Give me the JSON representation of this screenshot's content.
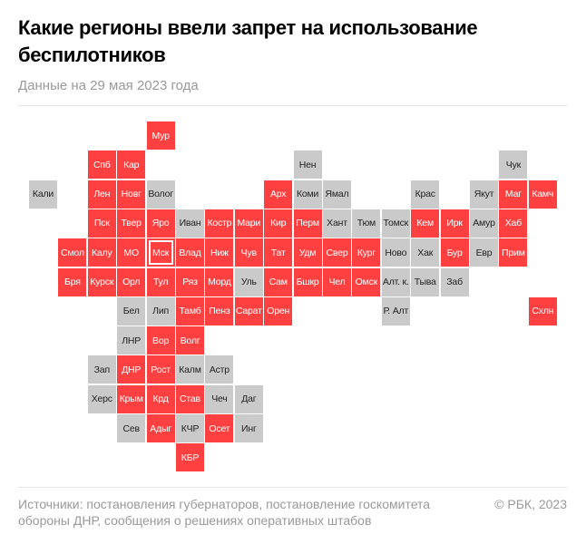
{
  "header": {
    "title": "Какие регионы ввели запрет на использование беспилотников",
    "subtitle": "Данные на 29 мая 2023 года"
  },
  "colors": {
    "banned": "#ff4040",
    "not_banned": "#cacaca"
  },
  "regions": [
    {
      "label": "Мур",
      "banned": true
    },
    {
      "label": "Спб",
      "banned": true
    },
    {
      "label": "Кар",
      "banned": true
    },
    {
      "label": "Нен",
      "banned": false
    },
    {
      "label": "Чук",
      "banned": false
    },
    {
      "label": "Кали",
      "banned": false
    },
    {
      "label": "Лен",
      "banned": true
    },
    {
      "label": "Новг",
      "banned": true
    },
    {
      "label": "Волог",
      "banned": false
    },
    {
      "label": "Арх",
      "banned": true
    },
    {
      "label": "Коми",
      "banned": false
    },
    {
      "label": "Ямал",
      "banned": false
    },
    {
      "label": "Крас",
      "banned": false
    },
    {
      "label": "Якут",
      "banned": false
    },
    {
      "label": "Маг",
      "banned": true
    },
    {
      "label": "Камч",
      "banned": true
    },
    {
      "label": "Пск",
      "banned": true
    },
    {
      "label": "Твер",
      "banned": true
    },
    {
      "label": "Яро",
      "banned": true
    },
    {
      "label": "Иван",
      "banned": false
    },
    {
      "label": "Костр",
      "banned": true
    },
    {
      "label": "Мари",
      "banned": true
    },
    {
      "label": "Кир",
      "banned": true
    },
    {
      "label": "Перм",
      "banned": true
    },
    {
      "label": "Хант",
      "banned": false
    },
    {
      "label": "Тюм",
      "banned": false
    },
    {
      "label": "Томск",
      "banned": false
    },
    {
      "label": "Кем",
      "banned": true
    },
    {
      "label": "Ирк",
      "banned": true
    },
    {
      "label": "Амур",
      "banned": false
    },
    {
      "label": "Хаб",
      "banned": true
    },
    {
      "label": "Смол",
      "banned": true
    },
    {
      "label": "Калу",
      "banned": true
    },
    {
      "label": "МО",
      "banned": true
    },
    {
      "label": "Мск",
      "banned": true,
      "capital": true
    },
    {
      "label": "Влад",
      "banned": true
    },
    {
      "label": "Ниж",
      "banned": true
    },
    {
      "label": "Чув",
      "banned": true
    },
    {
      "label": "Тат",
      "banned": true
    },
    {
      "label": "Удм",
      "banned": true
    },
    {
      "label": "Свер",
      "banned": true
    },
    {
      "label": "Кург",
      "banned": true
    },
    {
      "label": "Ново",
      "banned": false
    },
    {
      "label": "Хак",
      "banned": false
    },
    {
      "label": "Бур",
      "banned": true
    },
    {
      "label": "Евр",
      "banned": false
    },
    {
      "label": "Прим",
      "banned": true
    },
    {
      "label": "Бря",
      "banned": true
    },
    {
      "label": "Курск",
      "banned": true
    },
    {
      "label": "Орл",
      "banned": true
    },
    {
      "label": "Тул",
      "banned": true
    },
    {
      "label": "Ряз",
      "banned": true
    },
    {
      "label": "Морд",
      "banned": true
    },
    {
      "label": "Уль",
      "banned": false
    },
    {
      "label": "Сам",
      "banned": true
    },
    {
      "label": "Бшкр",
      "banned": true
    },
    {
      "label": "Чел",
      "banned": true
    },
    {
      "label": "Омск",
      "banned": true
    },
    {
      "label": "Алт. к.",
      "banned": false
    },
    {
      "label": "Тыва",
      "banned": false
    },
    {
      "label": "Заб",
      "banned": false
    },
    {
      "label": "Бел",
      "banned": false
    },
    {
      "label": "Лип",
      "banned": false
    },
    {
      "label": "Тамб",
      "banned": true
    },
    {
      "label": "Пенз",
      "banned": true
    },
    {
      "label": "Сарат",
      "banned": true
    },
    {
      "label": "Орен",
      "banned": true
    },
    {
      "label": "Р. Алт",
      "banned": false
    },
    {
      "label": "Схлн",
      "banned": true
    },
    {
      "label": "ЛНР",
      "banned": false
    },
    {
      "label": "Вор",
      "banned": true
    },
    {
      "label": "Волг",
      "banned": true
    },
    {
      "label": "Зап",
      "banned": false
    },
    {
      "label": "ДНР",
      "banned": true
    },
    {
      "label": "Рост",
      "banned": true
    },
    {
      "label": "Калм",
      "banned": false
    },
    {
      "label": "Астр",
      "banned": false
    },
    {
      "label": "Херс",
      "banned": false
    },
    {
      "label": "Крым",
      "banned": true
    },
    {
      "label": "Крд",
      "banned": true
    },
    {
      "label": "Став",
      "banned": true
    },
    {
      "label": "Чеч",
      "banned": false
    },
    {
      "label": "Даг",
      "banned": false
    },
    {
      "label": "Сев",
      "banned": false
    },
    {
      "label": "Адыг",
      "banned": true
    },
    {
      "label": "КЧР",
      "banned": false
    },
    {
      "label": "Осет",
      "banned": true
    },
    {
      "label": "Инг",
      "banned": false
    },
    {
      "label": "КБР",
      "banned": true
    }
  ],
  "footer": {
    "source": "Источники: постановления губернаторов, постановление госкомитета обороны ДНР, сообщения о решениях оперативных штабов",
    "copyright": "© РБК, 2023"
  }
}
